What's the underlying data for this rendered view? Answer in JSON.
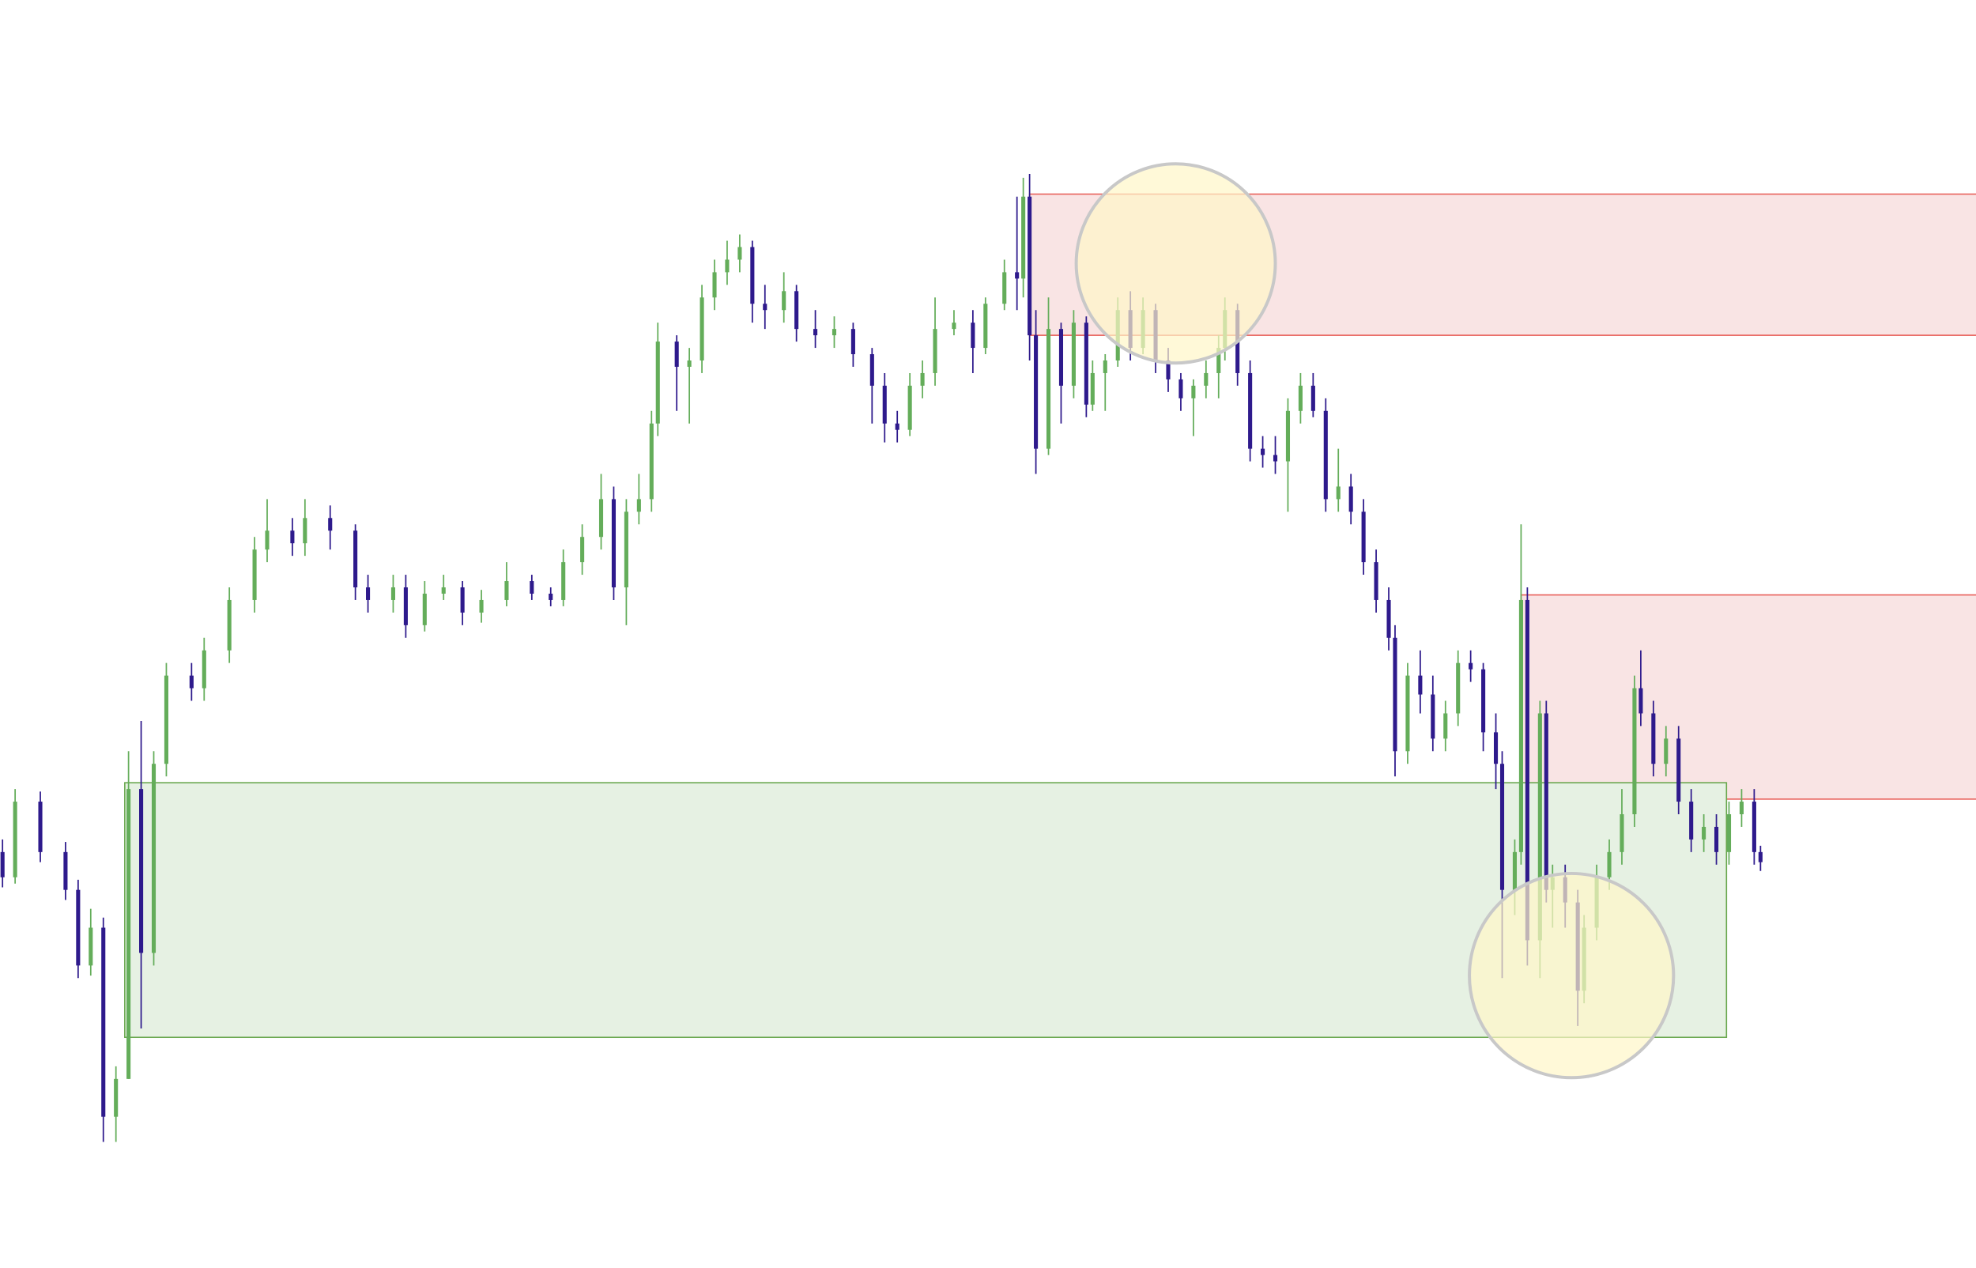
{
  "chart_data": {
    "type": "candlestick",
    "title": "",
    "xlabel": "",
    "ylabel": "",
    "grid": false,
    "legend": "none",
    "axes_visible": false,
    "xlim": [
      0,
      313.6
    ],
    "ylim": [
      0,
      100.6
    ],
    "colors": {
      "bullish": "#64ad5a",
      "bearish": "#2e1a8c",
      "supply_zone_fill": "#f9e4e4",
      "supply_zone_border": "#e8605a",
      "demand_zone_fill": "#e6f1e3",
      "demand_zone_border": "#6aa84f",
      "highlight_fill": "#fff6c8",
      "highlight_border": "#c8c8c8"
    },
    "candle_fields": [
      "bar",
      "open",
      "high",
      "low",
      "close"
    ],
    "candles": [
      [
        0,
        33,
        34,
        30.2,
        31
      ],
      [
        2,
        31,
        38,
        30.5,
        37
      ],
      [
        6,
        37,
        37.8,
        32.2,
        33
      ],
      [
        10,
        33,
        33.8,
        29.2,
        30
      ],
      [
        12,
        30,
        30.8,
        23,
        24
      ],
      [
        14,
        24,
        28.5,
        23.2,
        27
      ],
      [
        16,
        27,
        27.8,
        10,
        12
      ],
      [
        18,
        12,
        16,
        10,
        15
      ],
      [
        20,
        15,
        41,
        15,
        38
      ],
      [
        22,
        38,
        43.4,
        19,
        25
      ],
      [
        24,
        25,
        41,
        24,
        40
      ],
      [
        26,
        40,
        48,
        39,
        47
      ],
      [
        30,
        47,
        48,
        45,
        46
      ],
      [
        32,
        46,
        50,
        45,
        49
      ],
      [
        36,
        49,
        54,
        48,
        53
      ],
      [
        40,
        53,
        58,
        52,
        57
      ],
      [
        42,
        57,
        61,
        56,
        58.5
      ],
      [
        46,
        58.5,
        59.5,
        56.5,
        57.5
      ],
      [
        48,
        57.5,
        61,
        56.5,
        59.5
      ],
      [
        52,
        59.5,
        60.5,
        57,
        58.5
      ],
      [
        56,
        58.5,
        59,
        53,
        54
      ],
      [
        58,
        54,
        55,
        52,
        53
      ],
      [
        62,
        53,
        55,
        52,
        54
      ],
      [
        64,
        54,
        55,
        50,
        51
      ],
      [
        67,
        51,
        54.5,
        50.5,
        53.5
      ],
      [
        70,
        53.5,
        55,
        53,
        54
      ],
      [
        73,
        54,
        54.5,
        51,
        52
      ],
      [
        76,
        52,
        53.8,
        51.2,
        53
      ],
      [
        80,
        53,
        56,
        52.5,
        54.5
      ],
      [
        84,
        54.5,
        55,
        53,
        53.5
      ],
      [
        87,
        53.5,
        54,
        52.5,
        53
      ],
      [
        89,
        53,
        57,
        52.5,
        56
      ],
      [
        92,
        56,
        59,
        55,
        58
      ],
      [
        95,
        58,
        63,
        57,
        61
      ],
      [
        97,
        61,
        62,
        53,
        54
      ],
      [
        99,
        54,
        61,
        51,
        60
      ],
      [
        101,
        60,
        63,
        59,
        61
      ],
      [
        103,
        61,
        68,
        60,
        67
      ],
      [
        104,
        67,
        75,
        66,
        73.5
      ],
      [
        107,
        73.5,
        74,
        68,
        71.5
      ],
      [
        109,
        71.5,
        73,
        67,
        72
      ],
      [
        111,
        72,
        78,
        71,
        77
      ],
      [
        113,
        77,
        80,
        76,
        79
      ],
      [
        115,
        79,
        81.5,
        78,
        80
      ],
      [
        117,
        80,
        82,
        79,
        81
      ],
      [
        119,
        81,
        81.5,
        75,
        76.5
      ],
      [
        121,
        76.5,
        78,
        74.5,
        76
      ],
      [
        124,
        76,
        79,
        75,
        77.5
      ],
      [
        126,
        77.5,
        78,
        73.5,
        74.5
      ],
      [
        129,
        74.5,
        76,
        73,
        74
      ],
      [
        132,
        74,
        75.5,
        73,
        74.5
      ],
      [
        135,
        74.5,
        75,
        71.5,
        72.5
      ],
      [
        138,
        72.5,
        73,
        67,
        70
      ],
      [
        140,
        70,
        71,
        65.5,
        67
      ],
      [
        142,
        67,
        68,
        65.5,
        66.5
      ],
      [
        144,
        66.5,
        71,
        66,
        70
      ],
      [
        146,
        70,
        72,
        69,
        71
      ],
      [
        148,
        71,
        77,
        70,
        74.5
      ],
      [
        151,
        74.5,
        76,
        74,
        75
      ],
      [
        154,
        75,
        76,
        71,
        73
      ],
      [
        156,
        73,
        77,
        72.5,
        76.5
      ],
      [
        159,
        76.5,
        80,
        76,
        79
      ],
      [
        161,
        79,
        85,
        76,
        78.5
      ],
      [
        162,
        78.5,
        86.5,
        77,
        85
      ],
      [
        163,
        85,
        86.8,
        72,
        74
      ],
      [
        164,
        74,
        76,
        63,
        65
      ],
      [
        166,
        65,
        77,
        64.5,
        74.5
      ],
      [
        168,
        74.5,
        75,
        67,
        70
      ],
      [
        170,
        70,
        76,
        69,
        75
      ],
      [
        172,
        75,
        75.5,
        67.5,
        68.5
      ],
      [
        173,
        68.5,
        72,
        68,
        71
      ],
      [
        175,
        71,
        72.5,
        68,
        72
      ],
      [
        177,
        72,
        77,
        71.5,
        76
      ],
      [
        179,
        76,
        77.5,
        72,
        73
      ],
      [
        181,
        73,
        77,
        72.5,
        76
      ],
      [
        183,
        76,
        76.5,
        71,
        72
      ],
      [
        185,
        72,
        73,
        69.5,
        70.5
      ],
      [
        187,
        70.5,
        71,
        68,
        69
      ],
      [
        189,
        69,
        70.5,
        66,
        70
      ],
      [
        191,
        70,
        72,
        69,
        71
      ],
      [
        193,
        71,
        74,
        69,
        73
      ],
      [
        194,
        73,
        77,
        72,
        76
      ],
      [
        196,
        76,
        76.5,
        70,
        71
      ],
      [
        198,
        71,
        72,
        64,
        65
      ],
      [
        200,
        65,
        66,
        63.5,
        64.5
      ],
      [
        202,
        64.5,
        66,
        63,
        64
      ],
      [
        204,
        64,
        69,
        60,
        68
      ],
      [
        206,
        68,
        71,
        67,
        70
      ],
      [
        208,
        70,
        71,
        67.5,
        68
      ],
      [
        210,
        68,
        69,
        60,
        61
      ],
      [
        212,
        61,
        65,
        60,
        62
      ],
      [
        214,
        62,
        63,
        59,
        60
      ],
      [
        216,
        60,
        61,
        55,
        56
      ],
      [
        218,
        56,
        57,
        52,
        53
      ],
      [
        220,
        53,
        54,
        49,
        50
      ],
      [
        221,
        50,
        51,
        39,
        41
      ],
      [
        223,
        41,
        48,
        40,
        47
      ],
      [
        225,
        47,
        49,
        44,
        45.5
      ],
      [
        227,
        45.5,
        47,
        41,
        42
      ],
      [
        229,
        42,
        45,
        41,
        44
      ],
      [
        231,
        44,
        49,
        43,
        48
      ],
      [
        233,
        48,
        49,
        46.5,
        47.5
      ],
      [
        235,
        47.5,
        48,
        41,
        42.5
      ],
      [
        237,
        42.5,
        44,
        38,
        40
      ],
      [
        238,
        40,
        41,
        23,
        30
      ],
      [
        240,
        30,
        34,
        28,
        33
      ],
      [
        241,
        33,
        59,
        32,
        53
      ],
      [
        242,
        53,
        54,
        24,
        26
      ],
      [
        244,
        26,
        45,
        23,
        44
      ],
      [
        245,
        44,
        45,
        29,
        30
      ],
      [
        246,
        30,
        32,
        27,
        31
      ],
      [
        248,
        31,
        32,
        27,
        29
      ],
      [
        250,
        29,
        30,
        19.2,
        22
      ],
      [
        251,
        22,
        28,
        21,
        27
      ],
      [
        253,
        27,
        32,
        26,
        31
      ],
      [
        255,
        31,
        34,
        30,
        33
      ],
      [
        257,
        33,
        38,
        32,
        36
      ],
      [
        259,
        36,
        47,
        35,
        46
      ],
      [
        260,
        46,
        49,
        43,
        44
      ],
      [
        262,
        44,
        45,
        39,
        40
      ],
      [
        264,
        40,
        43,
        39,
        42
      ],
      [
        266,
        42,
        43,
        36,
        37
      ],
      [
        268,
        37,
        38,
        33,
        34
      ],
      [
        270,
        34,
        36,
        33,
        35
      ],
      [
        272,
        35,
        36,
        32,
        33
      ],
      [
        274,
        33,
        37,
        32,
        36
      ],
      [
        276,
        36,
        38,
        35,
        37
      ],
      [
        278,
        37,
        38,
        32,
        33
      ],
      [
        279,
        33,
        33.5,
        31.5,
        32.2
      ]
    ],
    "zones": [
      {
        "kind": "supply",
        "start_bar": 163,
        "end_bar": 313.6,
        "top": 85.2,
        "bottom": 74.0
      },
      {
        "kind": "supply",
        "start_bar": 241,
        "end_bar": 313.6,
        "top": 53.4,
        "bottom": 37.2
      },
      {
        "kind": "demand",
        "start_bar": 19.4,
        "end_bar": 273.6,
        "top": 38.5,
        "bottom": 18.3
      }
    ],
    "highlights": [
      {
        "shape": "circle",
        "center_bar": 186.2,
        "center_price": 79.7,
        "radius_price": 7.9
      },
      {
        "shape": "circle",
        "center_bar": 249,
        "center_price": 23.2,
        "radius_price": 8.1
      }
    ]
  }
}
